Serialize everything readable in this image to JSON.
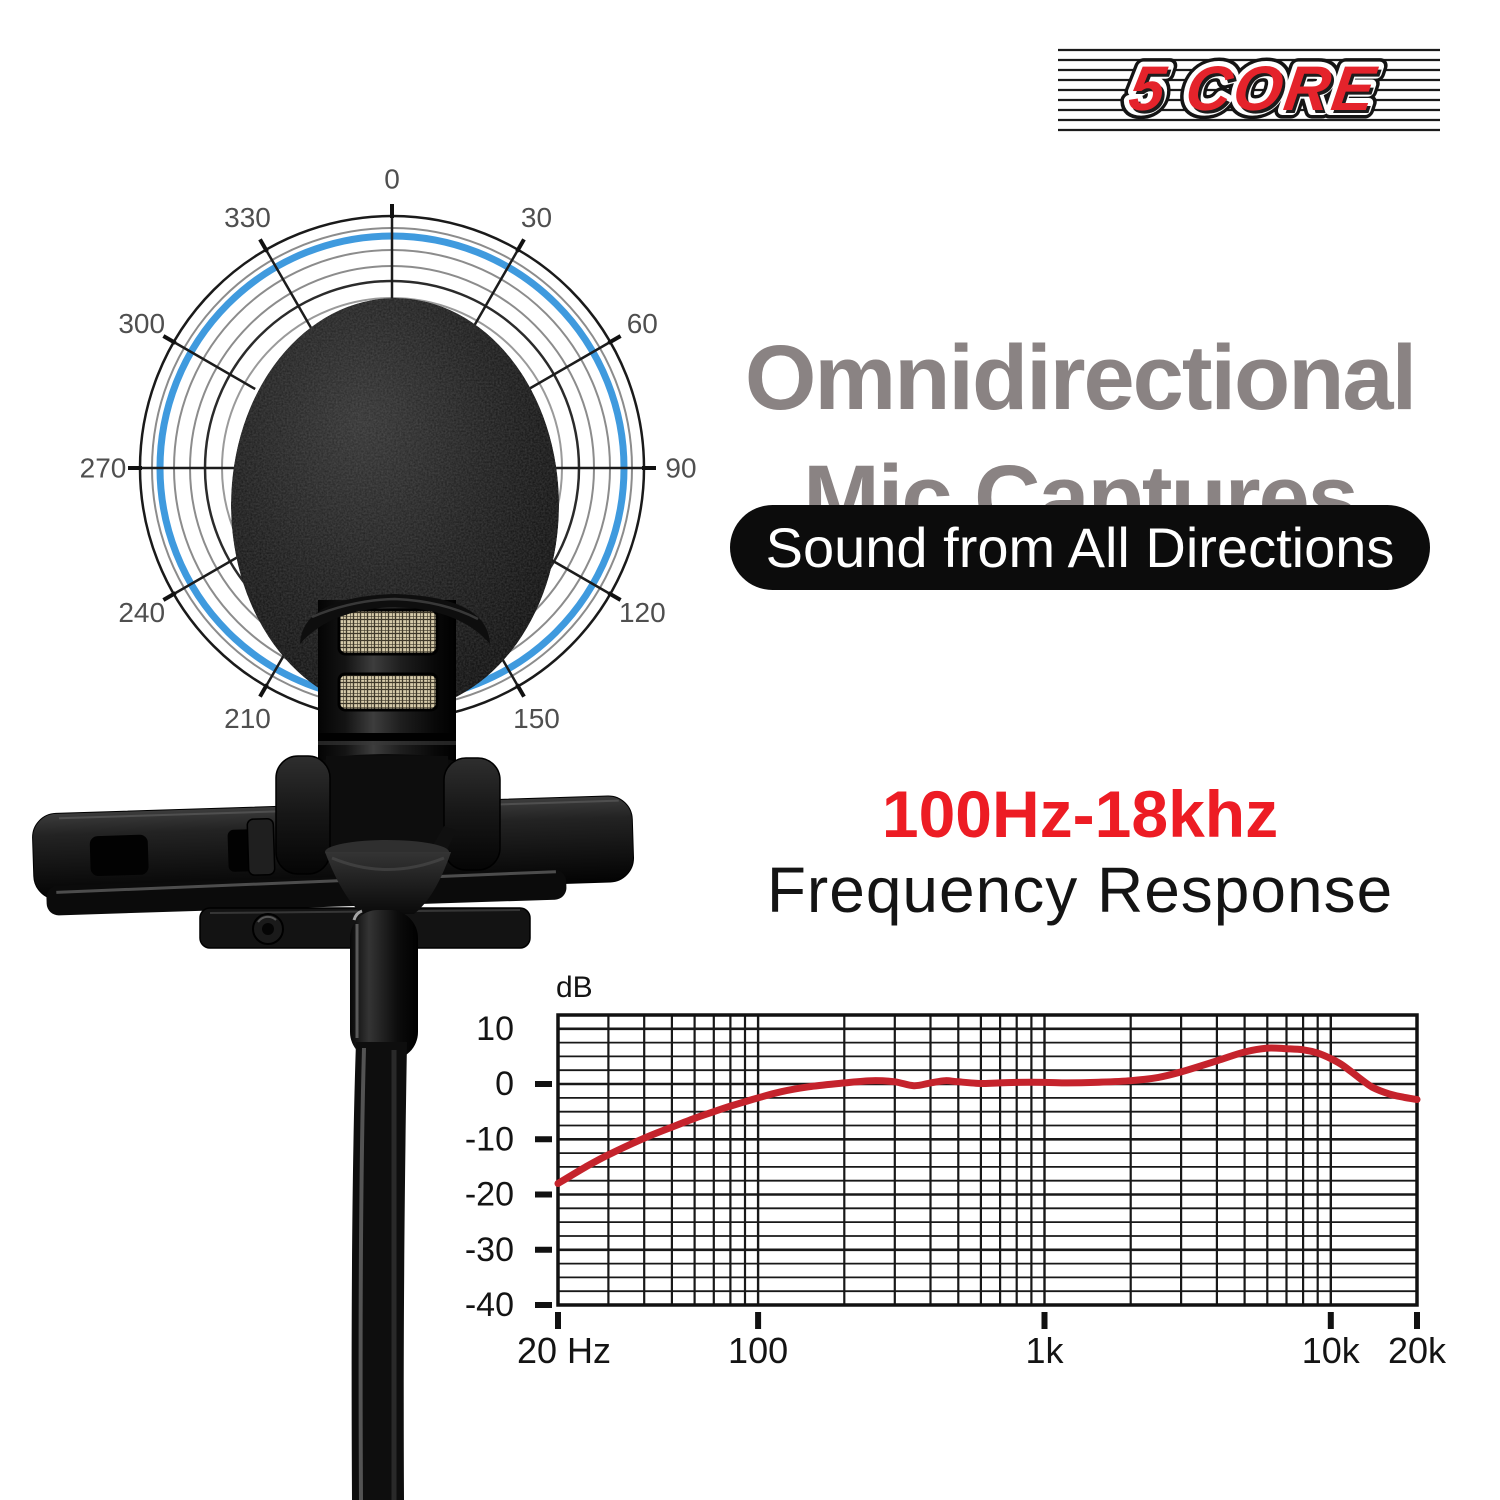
{
  "brand": {
    "logo_text": "5 CORE",
    "logo_color": "#e4232b"
  },
  "headline": {
    "line1": "Omnidirectional",
    "line2": "Mic Captures",
    "color": "#8a8383"
  },
  "badge": {
    "text": "Sound from All Directions",
    "bg_color": "#0c0c0c",
    "text_color": "#ffffff"
  },
  "spec": {
    "value": "100Hz-18khz",
    "value_color": "#ed1c24",
    "label": "Frequency Response",
    "label_color": "#141414"
  },
  "polar": {
    "unit": "degrees",
    "ring_color": "#3f9ade",
    "labels": [
      {
        "deg": 0,
        "text": "0"
      },
      {
        "deg": 30,
        "text": "30"
      },
      {
        "deg": 60,
        "text": "60"
      },
      {
        "deg": 90,
        "text": "90"
      },
      {
        "deg": 120,
        "text": "120"
      },
      {
        "deg": 150,
        "text": "150"
      },
      {
        "deg": 210,
        "text": "210"
      },
      {
        "deg": 240,
        "text": "240"
      },
      {
        "deg": 270,
        "text": "270"
      },
      {
        "deg": 300,
        "text": "300"
      },
      {
        "deg": 330,
        "text": "330"
      }
    ]
  },
  "chart_data": {
    "type": "line",
    "title": "",
    "x_scale": "log",
    "xlabel": "",
    "ylabel": "dB",
    "xlim": [
      20,
      20000
    ],
    "ylim": [
      -40,
      12.5
    ],
    "grid_step_db": 2.5,
    "grid": true,
    "x_ticks": [
      [
        20,
        "20 Hz"
      ],
      [
        100,
        "100"
      ],
      [
        1000,
        "1k"
      ],
      [
        10000,
        "10k"
      ],
      [
        20000,
        "20k"
      ]
    ],
    "y_ticks": [
      [
        10,
        "10"
      ],
      [
        0,
        "0"
      ],
      [
        -10,
        "-10"
      ],
      [
        -20,
        "-20"
      ],
      [
        -30,
        "-30"
      ],
      [
        -40,
        "-40"
      ]
    ],
    "series": [
      {
        "name": "frequency response (dB)",
        "color": "#c5232c",
        "points": [
          [
            20,
            -18
          ],
          [
            25,
            -15
          ],
          [
            30,
            -12.8
          ],
          [
            40,
            -9.8
          ],
          [
            50,
            -7.8
          ],
          [
            60,
            -6.2
          ],
          [
            70,
            -5
          ],
          [
            80,
            -4
          ],
          [
            90,
            -3.2
          ],
          [
            100,
            -2.5
          ],
          [
            120,
            -1.4
          ],
          [
            150,
            -0.5
          ],
          [
            200,
            0.2
          ],
          [
            250,
            0.6
          ],
          [
            300,
            0.4
          ],
          [
            350,
            -0.3
          ],
          [
            400,
            0.2
          ],
          [
            450,
            0.6
          ],
          [
            500,
            0.4
          ],
          [
            600,
            0.1
          ],
          [
            700,
            0.2
          ],
          [
            800,
            0.3
          ],
          [
            1000,
            0.3
          ],
          [
            1200,
            0.2
          ],
          [
            1500,
            0.3
          ],
          [
            2000,
            0.6
          ],
          [
            2500,
            1.2
          ],
          [
            3000,
            2.2
          ],
          [
            4000,
            4.2
          ],
          [
            5000,
            5.8
          ],
          [
            6000,
            6.5
          ],
          [
            7000,
            6.4
          ],
          [
            8000,
            6.2
          ],
          [
            9000,
            5.6
          ],
          [
            10000,
            4.6
          ],
          [
            11000,
            3.4
          ],
          [
            12500,
            1.2
          ],
          [
            14000,
            -0.6
          ],
          [
            16000,
            -1.8
          ],
          [
            18000,
            -2.4
          ],
          [
            20000,
            -2.8
          ]
        ]
      }
    ]
  }
}
